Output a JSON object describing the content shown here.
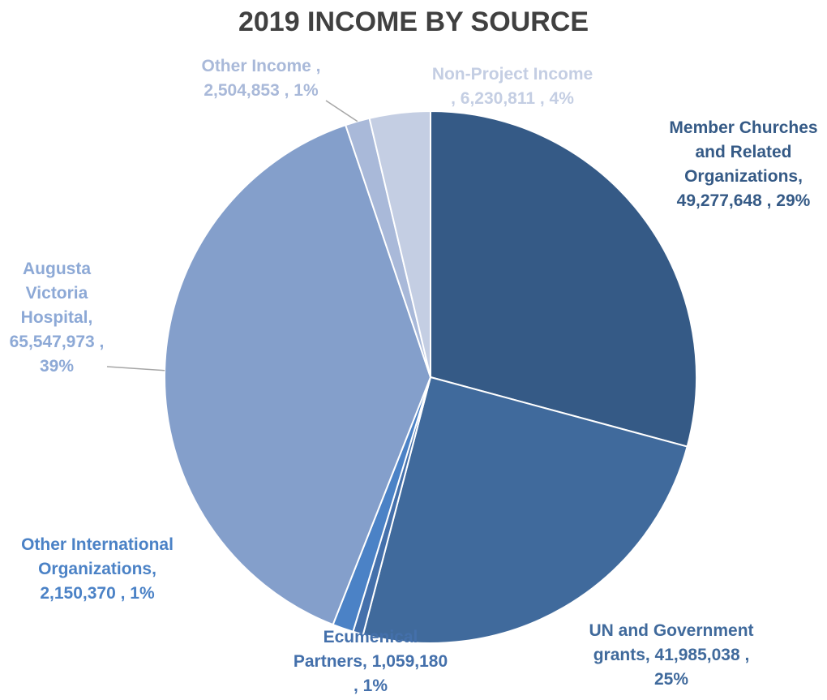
{
  "chart_data": {
    "type": "pie",
    "title": "2019 INCOME BY SOURCE",
    "slices": [
      {
        "name": "Member Churches and Related Organizations",
        "value": 49277648,
        "percent": "29%",
        "color": "#355A86",
        "label_lines": [
          "Member Churches",
          "and Related",
          "Organizations,",
          "49,277,648 , 29%"
        ]
      },
      {
        "name": "UN and Government grants",
        "value": 41985038,
        "percent": "25%",
        "color": "#406A9C",
        "label_lines": [
          "UN and Government",
          "grants,  41,985,038 ,",
          "25%"
        ]
      },
      {
        "name": "Ecumenical Partners",
        "value": 1059180,
        "percent": "1%",
        "color": "#4470AB",
        "label_lines": [
          "Ecumenical",
          "Partners,  1,059,180",
          ", 1%"
        ]
      },
      {
        "name": "Other International Organizations",
        "value": 2150370,
        "percent": "1%",
        "color": "#4B82C6",
        "label_lines": [
          "Other International",
          "Organizations,",
          "2,150,370 , 1%"
        ]
      },
      {
        "name": "Augusta Victoria Hospital",
        "value": 65547973,
        "percent": "39%",
        "color": "#849FCB",
        "label_lines": [
          "Augusta",
          "Victoria",
          "Hospital,",
          "65,547,973 ,",
          "39%"
        ]
      },
      {
        "name": "Other Income",
        "value": 2504853,
        "percent": "1%",
        "color": "#A9B9D9",
        "label_lines": [
          "Other Income ,",
          "2,504,853 , 1%"
        ]
      },
      {
        "name": "Non-Project Income",
        "value": 6230811,
        "percent": "4%",
        "color": "#C4CEE3",
        "label_lines": [
          "Non-Project Income",
          ", 6,230,811 , 4%"
        ]
      }
    ],
    "label_colors": [
      "#355A86",
      "#406A9C",
      "#4470AB",
      "#4B82C6",
      "#8DA9D6",
      "#A9B9D9",
      "#C4CEE3"
    ],
    "legend": "none"
  }
}
